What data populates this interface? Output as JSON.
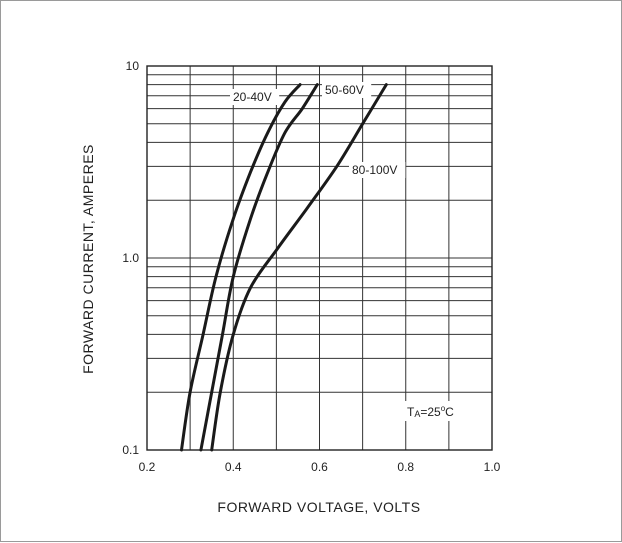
{
  "chart_data": {
    "type": "line",
    "xlabel": "FORWARD VOLTAGE, VOLTS",
    "ylabel": "FORWARD CURRENT, AMPERES",
    "xlim": [
      0.2,
      1.0
    ],
    "ylim": [
      0.1,
      10
    ],
    "y_scale": "log",
    "grid": true,
    "x_ticks": [
      "0.2",
      "0.4",
      "0.6",
      "0.8",
      "1.0"
    ],
    "y_ticks": [
      "0.1",
      "1.0",
      "10"
    ],
    "series": [
      {
        "name": "20-40V",
        "x": [
          0.28,
          0.3,
          0.33,
          0.36,
          0.4,
          0.44,
          0.48,
          0.52,
          0.555
        ],
        "y": [
          0.1,
          0.2,
          0.4,
          0.8,
          1.6,
          2.8,
          4.5,
          6.5,
          8.0
        ]
      },
      {
        "name": "50-60V",
        "x": [
          0.325,
          0.35,
          0.375,
          0.4,
          0.44,
          0.48,
          0.52,
          0.56,
          0.595
        ],
        "y": [
          0.1,
          0.2,
          0.4,
          0.8,
          1.6,
          2.8,
          4.5,
          6.0,
          8.0
        ]
      },
      {
        "name": "80-100V",
        "x": [
          0.35,
          0.37,
          0.4,
          0.44,
          0.5,
          0.57,
          0.64,
          0.7,
          0.755
        ],
        "y": [
          0.1,
          0.2,
          0.4,
          0.7,
          1.1,
          1.8,
          3.0,
          5.0,
          8.0
        ]
      }
    ],
    "annotations": [
      {
        "text_main": "T",
        "text_sub": "A",
        "text_rest": "=25",
        "text_sup": "o",
        "text_unit": "C"
      }
    ]
  }
}
